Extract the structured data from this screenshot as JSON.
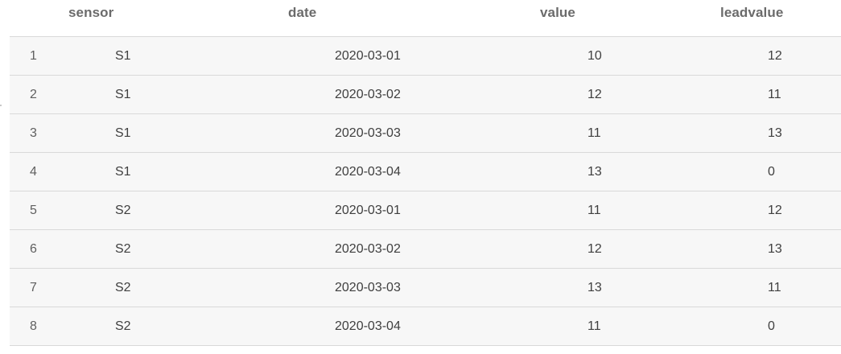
{
  "table": {
    "columns": [
      "sensor",
      "date",
      "value",
      "leadvalue"
    ],
    "rows": [
      {
        "index": "1",
        "sensor": "S1",
        "date": "2020-03-01",
        "value": "10",
        "leadvalue": "12"
      },
      {
        "index": "2",
        "sensor": "S1",
        "date": "2020-03-02",
        "value": "12",
        "leadvalue": "11"
      },
      {
        "index": "3",
        "sensor": "S1",
        "date": "2020-03-03",
        "value": "11",
        "leadvalue": "13"
      },
      {
        "index": "4",
        "sensor": "S1",
        "date": "2020-03-04",
        "value": "13",
        "leadvalue": "0"
      },
      {
        "index": "5",
        "sensor": "S2",
        "date": "2020-03-01",
        "value": "11",
        "leadvalue": "12"
      },
      {
        "index": "6",
        "sensor": "S2",
        "date": "2020-03-02",
        "value": "12",
        "leadvalue": "13"
      },
      {
        "index": "7",
        "sensor": "S2",
        "date": "2020-03-03",
        "value": "13",
        "leadvalue": "11"
      },
      {
        "index": "8",
        "sensor": "S2",
        "date": "2020-03-04",
        "value": "11",
        "leadvalue": "0"
      }
    ]
  }
}
